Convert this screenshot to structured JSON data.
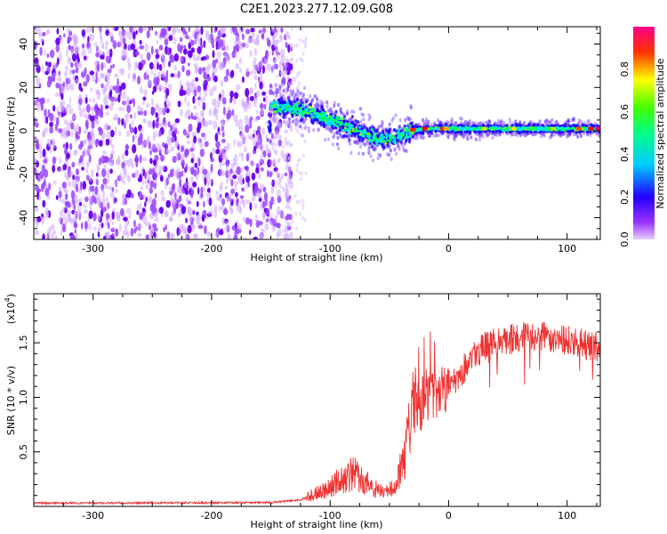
{
  "title": "C2E1.2023.277.12.09.G08",
  "chart_data": [
    {
      "type": "heatmap",
      "xlabel": "Height of straight line (km)",
      "ylabel": "Frequency (Hz)",
      "xlim": [
        -350,
        128
      ],
      "ylim": [
        -50,
        48
      ],
      "x_ticks": [
        -300,
        -200,
        -100,
        0,
        100
      ],
      "y_ticks": [
        -40,
        -20,
        0,
        20,
        40
      ],
      "colorbar": {
        "label": "Normalized spectral amplitude",
        "range": [
          0,
          1
        ],
        "ticks": [
          "0.0",
          "0.2",
          "0.4",
          "0.6",
          "0.8"
        ],
        "colors": [
          "#e6ccff",
          "#7f00ff",
          "#0000ff",
          "#00ffff",
          "#00ff00",
          "#ffff00",
          "#ff0000",
          "#ff00aa"
        ]
      },
      "features": {
        "noise_region_x": [
          -350,
          -140
        ],
        "trace_points": [
          {
            "x": -150,
            "freq": 12
          },
          {
            "x": -120,
            "freq": 9
          },
          {
            "x": -100,
            "freq": 5
          },
          {
            "x": -80,
            "freq": 1
          },
          {
            "x": -60,
            "freq": -4
          },
          {
            "x": -45,
            "freq": -3
          },
          {
            "x": -30,
            "freq": 0
          },
          {
            "x": -20,
            "freq": 1
          },
          {
            "x": 0,
            "freq": 1
          },
          {
            "x": 50,
            "freq": 1
          },
          {
            "x": 100,
            "freq": 1
          },
          {
            "x": 128,
            "freq": 1
          }
        ]
      }
    },
    {
      "type": "line",
      "xlabel": "Height of straight line (km)",
      "ylabel": "SNR (10 * v/v)",
      "scale_label": "(x10",
      "scale_exp": "4",
      "scale_close": ")",
      "xlim": [
        -350,
        128
      ],
      "ylim": [
        0,
        1.95
      ],
      "x_ticks": [
        -300,
        -200,
        -100,
        0,
        100
      ],
      "y_ticks": [
        "0.5",
        "1.0",
        "1.5"
      ],
      "y_tick_values": [
        0.5,
        1.0,
        1.5
      ],
      "color": "#ee3333",
      "envelope": [
        {
          "x": -350,
          "snr": 0.03
        },
        {
          "x": -150,
          "snr": 0.035
        },
        {
          "x": -125,
          "snr": 0.06
        },
        {
          "x": -105,
          "snr": 0.15
        },
        {
          "x": -90,
          "snr": 0.25
        },
        {
          "x": -80,
          "snr": 0.3
        },
        {
          "x": -70,
          "snr": 0.22
        },
        {
          "x": -55,
          "snr": 0.12
        },
        {
          "x": -45,
          "snr": 0.18
        },
        {
          "x": -38,
          "snr": 0.45
        },
        {
          "x": -30,
          "snr": 0.9
        },
        {
          "x": -20,
          "snr": 1.0
        },
        {
          "x": -10,
          "snr": 1.05
        },
        {
          "x": 0,
          "snr": 1.12
        },
        {
          "x": 10,
          "snr": 1.22
        },
        {
          "x": 20,
          "snr": 1.38
        },
        {
          "x": 35,
          "snr": 1.5
        },
        {
          "x": 60,
          "snr": 1.55
        },
        {
          "x": 90,
          "snr": 1.55
        },
        {
          "x": 110,
          "snr": 1.5
        },
        {
          "x": 128,
          "snr": 1.45
        }
      ]
    }
  ]
}
